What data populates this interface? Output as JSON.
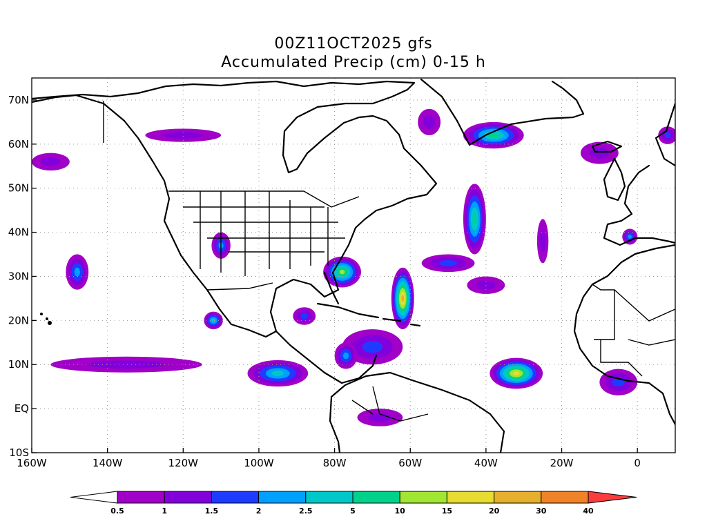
{
  "title": {
    "line1": "00Z11OCT2025 gfs",
    "line2": "Accumulated Precip (cm) 0-15 h"
  },
  "map": {
    "lon_range": [
      -160,
      10
    ],
    "lat_range": [
      -10,
      75
    ],
    "lat_ticks": [
      {
        "value": 70,
        "label": "70N"
      },
      {
        "value": 60,
        "label": "60N"
      },
      {
        "value": 50,
        "label": "50N"
      },
      {
        "value": 40,
        "label": "40N"
      },
      {
        "value": 30,
        "label": "30N"
      },
      {
        "value": 20,
        "label": "20N"
      },
      {
        "value": 10,
        "label": "10N"
      },
      {
        "value": 0,
        "label": "EQ"
      },
      {
        "value": -10,
        "label": "10S"
      }
    ],
    "lon_ticks": [
      {
        "value": -160,
        "label": "160W"
      },
      {
        "value": -140,
        "label": "140W"
      },
      {
        "value": -120,
        "label": "120W"
      },
      {
        "value": -100,
        "label": "100W"
      },
      {
        "value": -80,
        "label": "80W"
      },
      {
        "value": -60,
        "label": "60W"
      },
      {
        "value": -40,
        "label": "40W"
      },
      {
        "value": -20,
        "label": "20W"
      },
      {
        "value": 0,
        "label": "0"
      }
    ]
  },
  "colorbar": {
    "labels": [
      "0.5",
      "1",
      "1.5",
      "2",
      "2.5",
      "5",
      "10",
      "15",
      "20",
      "30",
      "40"
    ],
    "colors": [
      "#a000c8",
      "#8200dc",
      "#1e3cff",
      "#00a0ff",
      "#00c8c8",
      "#00d28c",
      "#a0e632",
      "#e6dc32",
      "#e6af2d",
      "#f08228",
      "#fa3c3c"
    ]
  },
  "precip_areas": [
    {
      "lon": -78,
      "lat": 31,
      "rx": 5,
      "ry": 3.5,
      "peak": 6
    },
    {
      "lon": -62,
      "lat": 25,
      "rx": 3,
      "ry": 7,
      "peak": 8
    },
    {
      "lon": -43,
      "lat": 43,
      "rx": 3,
      "ry": 8,
      "peak": 5
    },
    {
      "lon": -38,
      "lat": 62,
      "rx": 8,
      "ry": 3,
      "peak": 5
    },
    {
      "lon": -32,
      "lat": 8,
      "rx": 7,
      "ry": 3.5,
      "peak": 7
    },
    {
      "lon": -95,
      "lat": 8,
      "rx": 8,
      "ry": 3,
      "peak": 4
    },
    {
      "lon": -112,
      "lat": 20,
      "rx": 2.5,
      "ry": 2,
      "peak": 4
    },
    {
      "lon": -148,
      "lat": 31,
      "rx": 3,
      "ry": 4,
      "peak": 3
    },
    {
      "lon": -110,
      "lat": 37,
      "rx": 2.5,
      "ry": 3,
      "peak": 3
    },
    {
      "lon": -135,
      "lat": 10,
      "rx": 20,
      "ry": 1.8,
      "peak": 1
    },
    {
      "lon": -2,
      "lat": 39,
      "rx": 2,
      "ry": 1.8,
      "peak": 3
    },
    {
      "lon": -5,
      "lat": 6,
      "rx": 5,
      "ry": 3,
      "peak": 2
    },
    {
      "lon": -70,
      "lat": 14,
      "rx": 8,
      "ry": 4,
      "peak": 2
    },
    {
      "lon": -50,
      "lat": 33,
      "rx": 7,
      "ry": 2,
      "peak": 2
    },
    {
      "lon": -120,
      "lat": 62,
      "rx": 10,
      "ry": 1.5,
      "peak": 1
    },
    {
      "lon": -68,
      "lat": -2,
      "rx": 6,
      "ry": 2,
      "peak": 1
    },
    {
      "lon": -25,
      "lat": 38,
      "rx": 1.5,
      "ry": 5,
      "peak": 1
    },
    {
      "lon": -155,
      "lat": 56,
      "rx": 5,
      "ry": 2,
      "peak": 1
    },
    {
      "lon": 8,
      "lat": 62,
      "rx": 2.5,
      "ry": 2,
      "peak": 2
    },
    {
      "lon": -55,
      "lat": 65,
      "rx": 3,
      "ry": 3,
      "peak": 1
    },
    {
      "lon": -10,
      "lat": 58,
      "rx": 5,
      "ry": 2.5,
      "peak": 1
    },
    {
      "lon": -40,
      "lat": 28,
      "rx": 5,
      "ry": 2,
      "peak": 1
    },
    {
      "lon": -88,
      "lat": 21,
      "rx": 3,
      "ry": 2,
      "peak": 2
    },
    {
      "lon": -77,
      "lat": 12,
      "rx": 3,
      "ry": 3,
      "peak": 3
    }
  ]
}
